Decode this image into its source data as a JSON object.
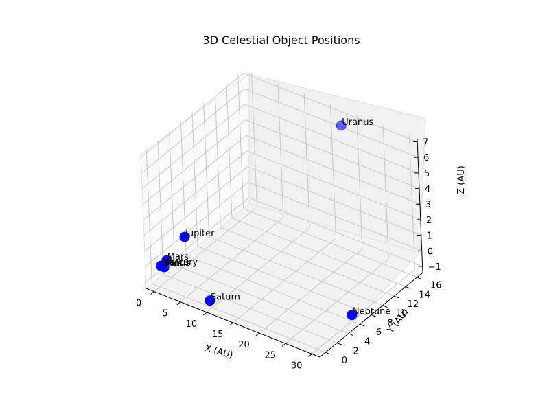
{
  "chart_data": {
    "type": "scatter",
    "title": "3D Celestial Object Positions",
    "xlabel": "X (AU)",
    "ylabel": "Y (AU)",
    "zlabel": "Z (AU)",
    "x_ticks": [
      "0",
      "5",
      "10",
      "15",
      "20",
      "25",
      "30"
    ],
    "y_ticks": [
      "0",
      "2",
      "4",
      "6",
      "8",
      "10",
      "12",
      "14",
      "16"
    ],
    "z_ticks": [
      "−1",
      "0",
      "1",
      "2",
      "3",
      "4",
      "5",
      "6",
      "7"
    ],
    "xlim": [
      -1.5,
      31.5
    ],
    "ylim": [
      -1,
      17
    ],
    "zlim": [
      -1.4,
      7.2
    ],
    "grid": true,
    "point_color": "#0000ff",
    "points": [
      {
        "label": "Mercury",
        "x": 0.39,
        "y": 0.0,
        "z": 0.0
      },
      {
        "label": "Venus",
        "x": 0.72,
        "y": 0.0,
        "z": 0.0
      },
      {
        "label": "Earth",
        "x": 1.0,
        "y": 0.0,
        "z": 0.0
      },
      {
        "label": "Mars",
        "x": 1.52,
        "y": 0.0,
        "z": 0.5
      },
      {
        "label": "Jupiter",
        "x": 5.2,
        "y": 0.0,
        "z": 2.5
      },
      {
        "label": "Saturn",
        "x": 9.58,
        "y": 0.0,
        "z": -1.0
      },
      {
        "label": "Uranus",
        "x": 19.2,
        "y": 15.0,
        "z": 7.0
      },
      {
        "label": "Neptune",
        "x": 30.05,
        "y": 6.0,
        "z": -1.0
      }
    ]
  }
}
